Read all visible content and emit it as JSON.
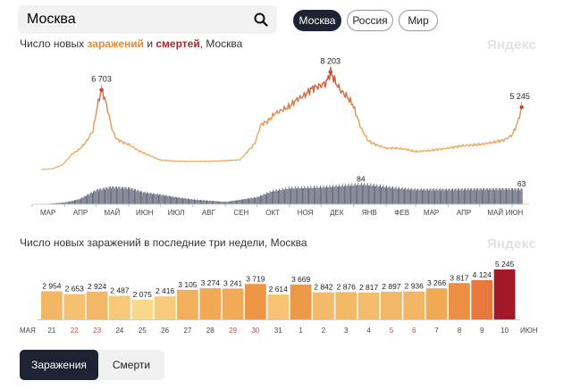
{
  "search": {
    "value": "Москва"
  },
  "regions": [
    {
      "label": "Москва",
      "active": true
    },
    {
      "label": "Россия",
      "active": false
    },
    {
      "label": "Мир",
      "active": false
    }
  ],
  "chart1": {
    "title_pre": "Число новых ",
    "title_inf": "заражений",
    "title_mid": " и ",
    "title_dth": "смертей",
    "title_post": ", Москва",
    "watermark": "Яндекс"
  },
  "chart2": {
    "title": "Число новых заражений в последние три недели, Москва",
    "watermark": "Яндекс"
  },
  "tabs": {
    "infections": "Заражения",
    "deaths": "Смерти"
  },
  "colors": {
    "infections_low": "#f0b86a",
    "infections_high": "#c0392b",
    "deaths": "#5b5f73",
    "active": "#1f2233"
  },
  "chart_data": [
    {
      "type": "line",
      "series": [
        {
          "name": "заражений",
          "x": [
            "2020-03-10",
            "2020-03-20",
            "2020-03-30",
            "2020-04-08",
            "2020-04-15",
            "2020-04-22",
            "2020-04-28",
            "2020-05-02",
            "2020-05-06",
            "2020-05-09",
            "2020-05-12",
            "2020-05-16",
            "2020-05-20",
            "2020-05-26",
            "2020-06-01",
            "2020-06-10",
            "2020-06-20",
            "2020-07-01",
            "2020-07-15",
            "2020-08-01",
            "2020-08-15",
            "2020-09-01",
            "2020-09-15",
            "2020-09-22",
            "2020-09-29",
            "2020-10-05",
            "2020-10-12",
            "2020-10-18",
            "2020-10-25",
            "2020-11-01",
            "2020-11-08",
            "2020-11-15",
            "2020-11-22",
            "2020-11-29",
            "2020-12-06",
            "2020-12-10",
            "2020-12-15",
            "2020-12-20",
            "2020-12-25",
            "2020-12-31",
            "2021-01-08",
            "2021-01-15",
            "2021-01-22",
            "2021-02-01",
            "2021-02-10",
            "2021-02-20",
            "2021-03-01",
            "2021-03-15",
            "2021-04-01",
            "2021-04-15",
            "2021-05-01",
            "2021-05-15",
            "2021-05-25",
            "2021-06-01",
            "2021-06-06",
            "2021-06-10"
          ],
          "values": [
            0,
            60,
            400,
            1300,
            1700,
            2400,
            3300,
            5300,
            6703,
            6000,
            5000,
            3400,
            2600,
            2300,
            2100,
            1600,
            1200,
            800,
            700,
            680,
            690,
            740,
            820,
            1500,
            2200,
            3800,
            4100,
            4700,
            5000,
            5300,
            5900,
            6200,
            6800,
            7000,
            7300,
            8203,
            7300,
            6600,
            6200,
            5500,
            3500,
            2400,
            2100,
            1800,
            1800,
            1700,
            1500,
            1600,
            1800,
            2000,
            2100,
            2300,
            2500,
            2900,
            3900,
            5245
          ]
        },
        {
          "name": "смертей",
          "x": [
            "2020-03-10",
            "2020-04-01",
            "2020-04-15",
            "2020-05-01",
            "2020-05-15",
            "2020-06-01",
            "2020-06-15",
            "2020-07-01",
            "2020-07-15",
            "2020-08-01",
            "2020-09-01",
            "2020-10-01",
            "2020-10-15",
            "2020-11-01",
            "2020-12-01",
            "2021-01-08",
            "2021-01-20",
            "2021-02-10",
            "2021-03-01",
            "2021-04-01",
            "2021-05-01",
            "2021-06-01",
            "2021-06-10"
          ],
          "values": [
            0,
            8,
            22,
            60,
            72,
            68,
            50,
            40,
            30,
            20,
            10,
            30,
            55,
            68,
            72,
            84,
            80,
            68,
            62,
            62,
            64,
            64,
            63
          ]
        }
      ],
      "annotations": [
        {
          "label": "6 703",
          "x": "2020-05-06"
        },
        {
          "label": "8 203",
          "x": "2020-12-10"
        },
        {
          "label": "5 245",
          "x": "2021-06-10"
        },
        {
          "label": "84",
          "x": "2021-01-08"
        },
        {
          "label": "63",
          "x": "2021-06-10"
        }
      ],
      "x_ticks": [
        "МАР",
        "АПР",
        "МАЙ",
        "ИЮН",
        "ИЮЛ",
        "АВГ",
        "СЕН",
        "ОКТ",
        "НОЯ",
        "ДЕК",
        "ЯНВ",
        "ФЕВ",
        "МАР",
        "АПР",
        "МАЙ",
        "ИЮН"
      ],
      "xlim": [
        "2020-03-01",
        "2021-06-12"
      ],
      "ylim": [
        0,
        9000
      ],
      "deaths_ylim": [
        0,
        100
      ],
      "grid": false
    },
    {
      "type": "bar",
      "categories": [
        "21",
        "22",
        "23",
        "24",
        "25",
        "26",
        "27",
        "28",
        "29",
        "30",
        "31",
        "1",
        "2",
        "3",
        "4",
        "5",
        "6",
        "7",
        "8",
        "9",
        "10"
      ],
      "red_categories": [
        "22",
        "23",
        "29",
        "30",
        "5",
        "6"
      ],
      "values": [
        2954,
        2653,
        2924,
        2487,
        2075,
        2416,
        3105,
        3274,
        3241,
        3719,
        2614,
        3669,
        2842,
        2876,
        2817,
        2897,
        2936,
        3266,
        3817,
        4124,
        5245
      ],
      "value_labels": [
        "2 954",
        "2 653",
        "2 924",
        "2 487",
        "2 075",
        "2 416",
        "3 105",
        "3 274",
        "3 241",
        "3 719",
        "2 614",
        "3 669",
        "2 842",
        "2 876",
        "2 817",
        "2 897",
        "2 936",
        "3 266",
        "3 817",
        "4 124",
        "5 245"
      ],
      "month_start": "МАЯ",
      "month_end": "ИЮН",
      "ylim": [
        0,
        5500
      ]
    }
  ]
}
